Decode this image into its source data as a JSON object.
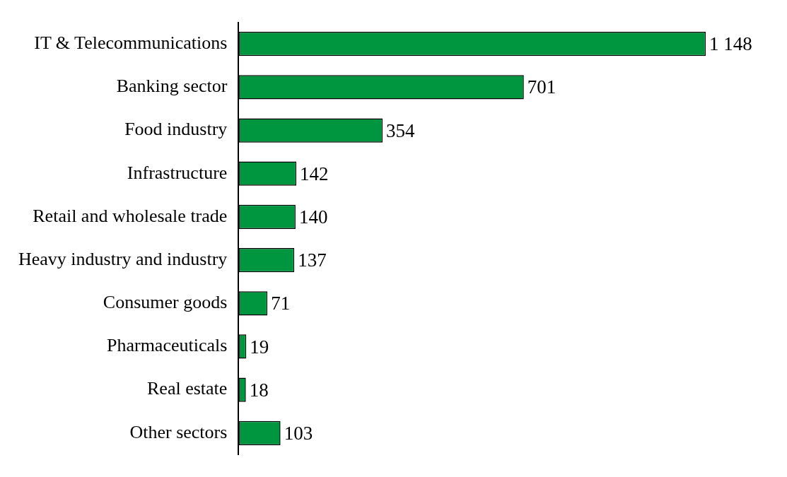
{
  "chart_data": {
    "type": "bar",
    "orientation": "horizontal",
    "categories": [
      "IT & Telecommunications",
      "Banking sector",
      "Food industry",
      "Infrastructure",
      "Retail and wholesale trade",
      "Heavy industry and industry",
      "Consumer goods",
      "Pharmaceuticals",
      "Real estate",
      "Other sectors"
    ],
    "values": [
      1148,
      701,
      354,
      142,
      140,
      137,
      71,
      19,
      18,
      103
    ],
    "value_labels": [
      "1 148",
      "701",
      "354",
      "142",
      "140",
      "137",
      "71",
      "19",
      "18",
      "103"
    ],
    "color": "#00963f",
    "legend": false
  }
}
